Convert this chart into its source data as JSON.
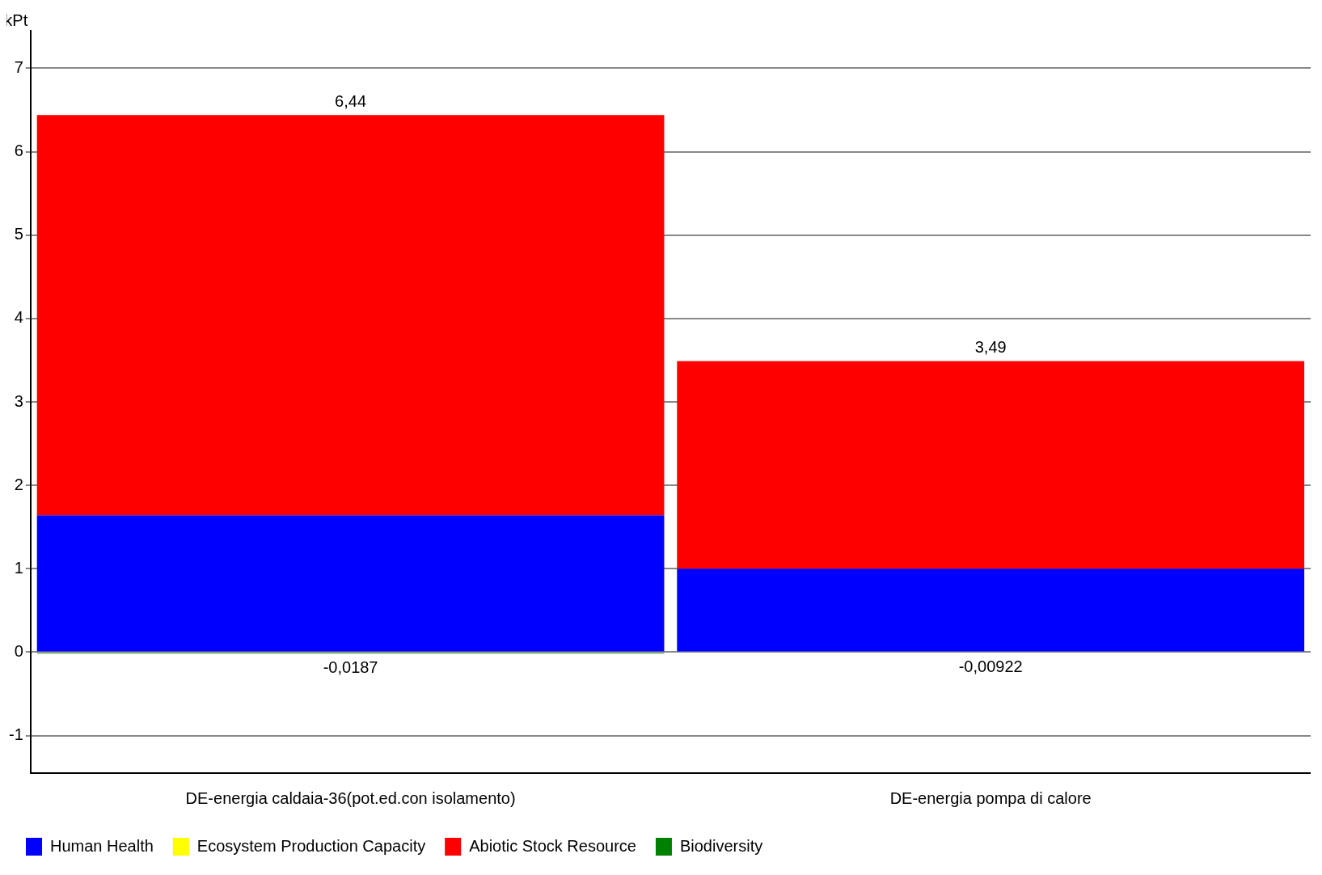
{
  "chart_data": {
    "type": "bar",
    "stacked": true,
    "ylabel": "kPt",
    "categories": [
      "DE-energia caldaia-36(pot.ed.con isolamento)",
      "DE-energia pompa di calore"
    ],
    "series": [
      {
        "name": "Human Health",
        "color": "#0000ff",
        "values": [
          1.64,
          1.0
        ]
      },
      {
        "name": "Ecosystem Production Capacity",
        "color": "#ffff00",
        "values": [
          0,
          0
        ]
      },
      {
        "name": "Abiotic Stock Resource",
        "color": "#ff0000",
        "values": [
          4.8,
          2.49
        ]
      },
      {
        "name": "Biodiversity",
        "color": "#008000",
        "values": [
          -0.0187,
          -0.00922
        ],
        "value_labels": [
          "-0,0187",
          "-0,00922"
        ]
      }
    ],
    "totals": [
      "6,44",
      "3,49"
    ],
    "ylim": [
      -1.45,
      7.45
    ],
    "yticks": [
      -1,
      0,
      1,
      2,
      3,
      4,
      5,
      6,
      7
    ],
    "grid": "y",
    "legend": "bottom left"
  }
}
